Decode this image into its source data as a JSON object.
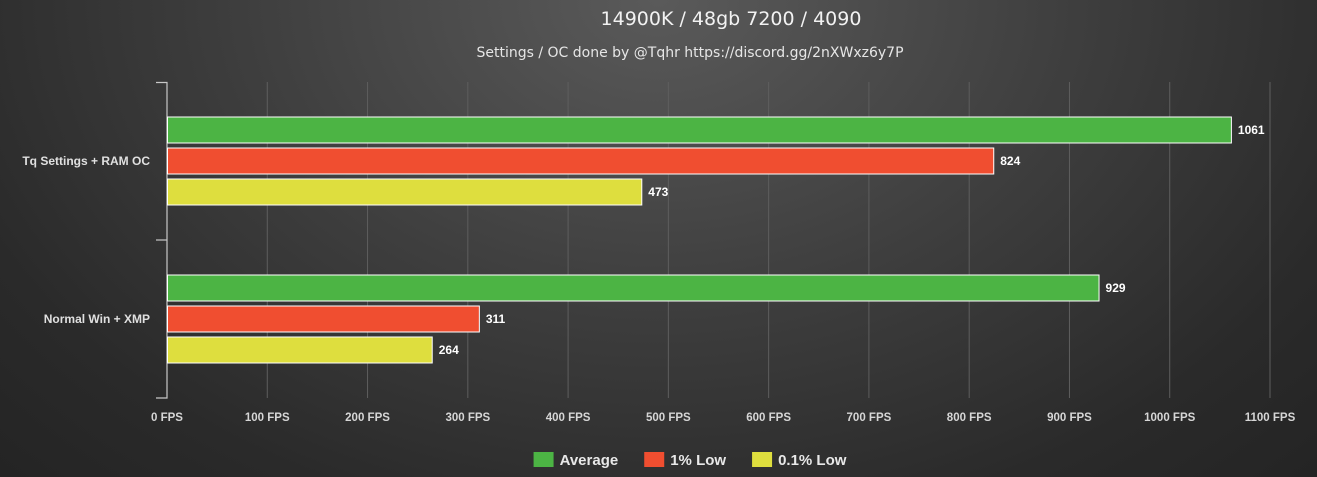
{
  "chart_data": {
    "type": "bar",
    "orientation": "horizontal",
    "title": "14900K / 48gb 7200 / 4090",
    "subtitle": "Settings / OC done by @Tqhr https://discord.gg/2nXWxz6y7P",
    "categories": [
      "Tq Settings + RAM OC",
      "Normal Win + XMP"
    ],
    "series": [
      {
        "name": "Average",
        "color": "#4cb444",
        "values": [
          1061,
          929
        ]
      },
      {
        "name": "1% Low",
        "color": "#f04e30",
        "values": [
          824,
          311
        ]
      },
      {
        "name": "0.1% Low",
        "color": "#dede3e",
        "values": [
          473,
          264
        ]
      }
    ],
    "x_ticks": [
      "0 FPS",
      "100 FPS",
      "200 FPS",
      "300 FPS",
      "400 FPS",
      "500 FPS",
      "600 FPS",
      "700 FPS",
      "800 FPS",
      "900 FPS",
      "1000 FPS",
      "1100 FPS"
    ],
    "xlim": [
      0,
      1100
    ],
    "grid": true,
    "data_labels": true,
    "legend_position": "bottom-center"
  }
}
